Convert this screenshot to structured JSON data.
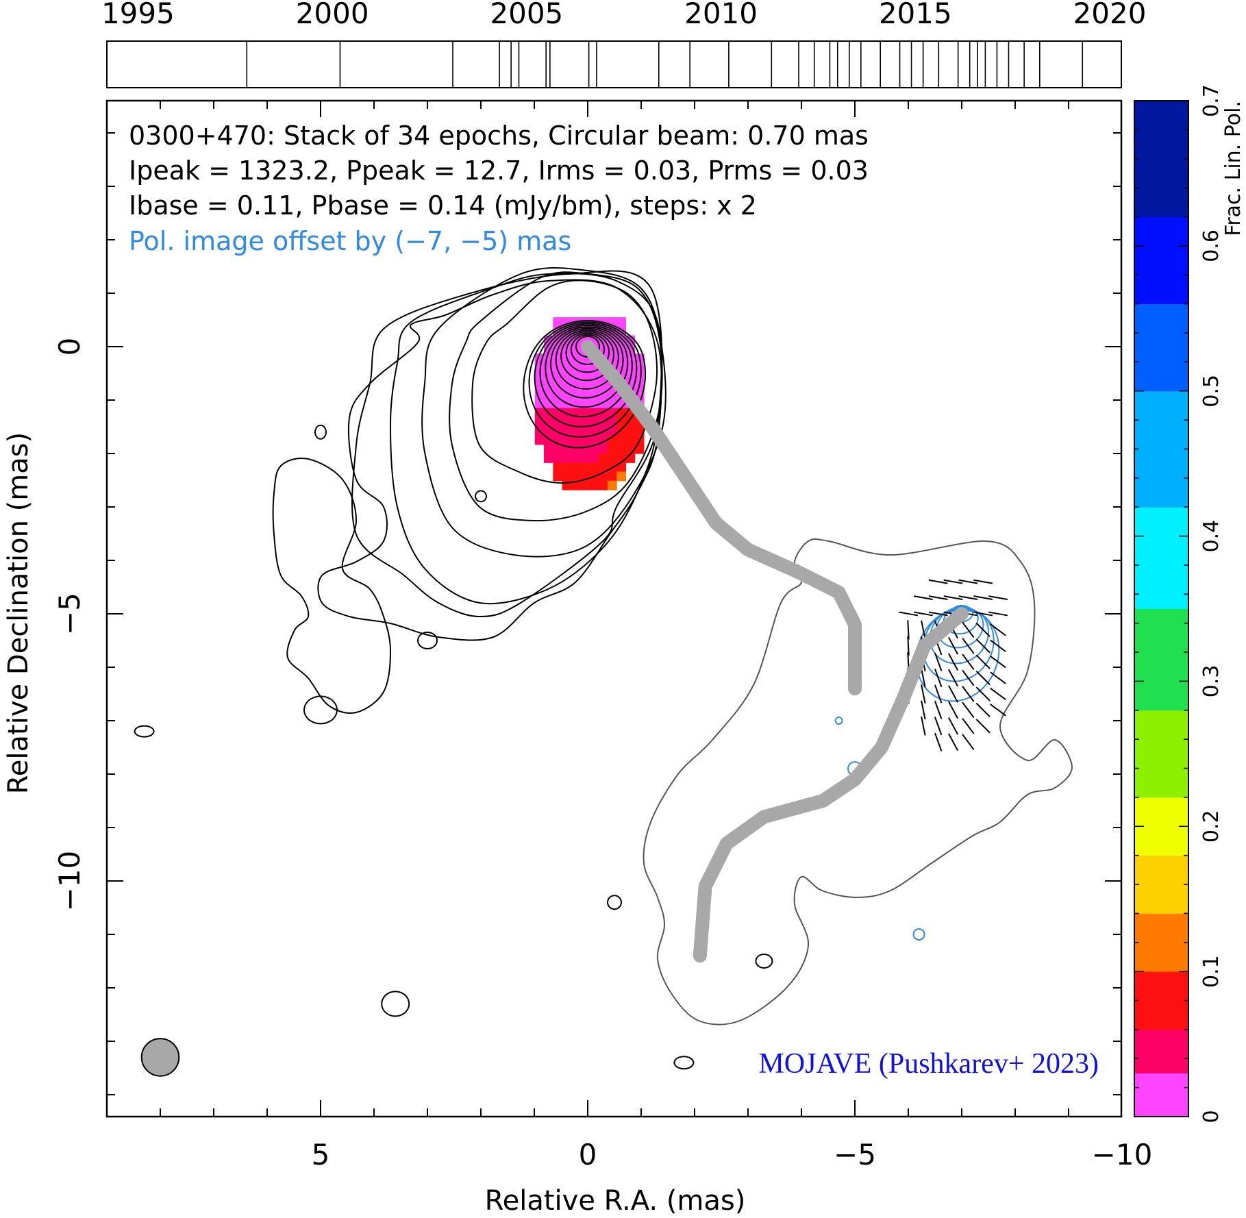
{
  "chart_data": {
    "type": "contour_map",
    "source": "0300+470",
    "info_lines": [
      "0300+470: Stack of 34 epochs, Circular beam: 0.70 mas",
      "Ipeak = 1323.2, Ppeak = 12.7, Irms = 0.03, Prms = 0.03",
      "Ibase = 0.11, Pbase = 0.14 (mJy/bm), steps: x 2"
    ],
    "offset_note": "Pol. image offset by (−7, −5) mas",
    "credit": "MOJAVE (Pushkarev+ 2023)",
    "xlabel": "Relative R.A. (mas)",
    "ylabel": "Relative Declination (mas)",
    "xlim": [
      9,
      -10
    ],
    "ylim": [
      -14,
      4.5
    ],
    "x_ticks": [
      5,
      0,
      -5,
      -10
    ],
    "y_ticks": [
      0,
      -5,
      -10
    ],
    "x_tick_labels": [
      "5",
      "0",
      "−5",
      "−10"
    ],
    "y_tick_labels": [
      "0",
      "−5",
      "−10"
    ],
    "timeline": {
      "year_ticks": [
        1995,
        2000,
        2005,
        2010,
        2015,
        2020
      ],
      "year_tick_labels": [
        "1995",
        "2000",
        "2005",
        "2010",
        "2015",
        "2020"
      ],
      "range": [
        1994.2,
        2020.3
      ],
      "epochs": [
        1997.8,
        2000.2,
        2003.1,
        2004.3,
        2004.6,
        2004.8,
        2005.5,
        2005.6,
        2006.6,
        2006.8,
        2008.4,
        2009.2,
        2010.2,
        2011.3,
        2012.0,
        2012.4,
        2012.8,
        2013.0,
        2013.3,
        2013.6,
        2014.1,
        2014.6,
        2014.9,
        2015.2,
        2015.6,
        2016.1,
        2016.4,
        2016.6,
        2016.8,
        2017.1,
        2017.4,
        2017.8,
        2018.2,
        2019.3
      ]
    },
    "colorbar": {
      "label": "Frac. Lin. Pol.",
      "range": [
        0,
        0.7
      ],
      "tick_values": [
        0,
        0.1,
        0.2,
        0.3,
        0.4,
        0.5,
        0.6,
        0.7
      ],
      "tick_labels": [
        "0",
        "0.1",
        "0.2",
        "0.3",
        "0.4",
        "0.5",
        "0.6",
        "0.7"
      ]
    },
    "beam": {
      "ra": 8,
      "dec": -13.3,
      "diameter": 0.7
    },
    "ridgeline": [
      [
        0,
        0
      ],
      [
        -0.6,
        -0.7
      ],
      [
        -1.2,
        -1.5
      ],
      [
        -1.8,
        -2.4
      ],
      [
        -2.4,
        -3.3
      ],
      [
        -3.0,
        -3.8
      ],
      [
        -3.9,
        -4.2
      ],
      [
        -4.7,
        -4.6
      ],
      [
        -5.0,
        -5.2
      ],
      [
        -5.0,
        -6.4
      ]
    ],
    "pol_ridgeline": [
      [
        -7,
        -5
      ],
      [
        -6.3,
        -5.6
      ],
      [
        -5.9,
        -6.6
      ],
      [
        -5.5,
        -7.5
      ],
      [
        -5.0,
        -8.1
      ],
      [
        -4.4,
        -8.5
      ],
      [
        -3.3,
        -8.8
      ],
      [
        -2.6,
        -9.3
      ],
      [
        -2.2,
        -10.1
      ],
      [
        -2.1,
        -11.4
      ]
    ]
  }
}
